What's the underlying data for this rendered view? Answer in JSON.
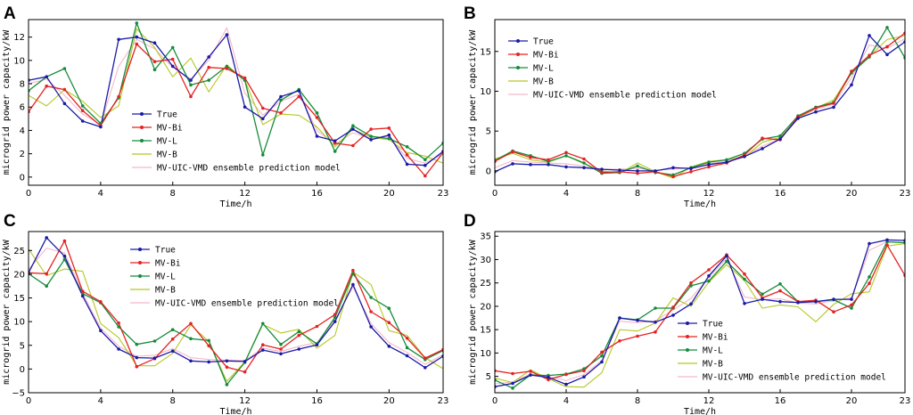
{
  "chart_data": [
    {
      "panel": "A",
      "type": "line",
      "xlabel": "Time/h",
      "ylabel": "microgrid power capacity/kW",
      "xlim": [
        0,
        23
      ],
      "ylim": [
        -0.7,
        13.5
      ],
      "xticks": [
        0,
        4,
        8,
        12,
        16,
        20,
        23
      ],
      "yticks": [
        0,
        2,
        4,
        6,
        8,
        10,
        12
      ],
      "legend_position": "lower-left",
      "x": [
        0,
        1,
        2,
        3,
        4,
        5,
        6,
        7,
        8,
        9,
        10,
        11,
        12,
        13,
        14,
        15,
        16,
        17,
        18,
        19,
        20,
        21,
        22,
        23
      ],
      "series": [
        {
          "name": "True",
          "color": "#1a1aa8",
          "marker": true,
          "values": [
            8.3,
            8.6,
            6.3,
            4.8,
            4.3,
            11.8,
            12.0,
            11.5,
            9.5,
            8.3,
            10.3,
            12.2,
            6.0,
            5.0,
            6.9,
            7.4,
            3.5,
            3.1,
            4.1,
            3.2,
            3.6,
            1.1,
            1.0,
            2.2
          ]
        },
        {
          "name": "MV-Bi",
          "color": "#e52222",
          "marker": true,
          "values": [
            5.6,
            7.8,
            7.5,
            5.7,
            4.4,
            6.9,
            11.4,
            9.9,
            10.1,
            6.9,
            9.4,
            9.3,
            8.5,
            5.9,
            5.5,
            6.9,
            5.1,
            2.9,
            2.7,
            4.1,
            4.2,
            1.9,
            0.1,
            2.1
          ]
        },
        {
          "name": "MV-L",
          "color": "#158c3a",
          "marker": true,
          "values": [
            7.4,
            8.6,
            9.3,
            6.1,
            4.6,
            6.8,
            13.2,
            9.2,
            11.1,
            7.9,
            8.3,
            9.5,
            8.3,
            1.9,
            6.6,
            7.5,
            5.5,
            2.2,
            4.4,
            3.5,
            3.3,
            2.6,
            1.5,
            2.9
          ]
        },
        {
          "name": "MV-B",
          "color": "#b5c822",
          "marker": false,
          "values": [
            7.0,
            6.1,
            7.5,
            6.5,
            5.1,
            6.1,
            12.7,
            11.1,
            8.6,
            10.2,
            7.3,
            9.6,
            8.3,
            4.5,
            5.4,
            5.3,
            4.3,
            2.6,
            4.1,
            3.4,
            3.2,
            2.1,
            1.8,
            1.2
          ]
        },
        {
          "name": "MV-UIC-VMD ensemble prediction model",
          "color": "#f4b8c8",
          "marker": false,
          "values": [
            8.0,
            8.4,
            7.0,
            5.4,
            4.5,
            9.5,
            11.8,
            11.0,
            9.4,
            8.4,
            10.0,
            12.8,
            7.2,
            5.3,
            6.5,
            7.1,
            4.0,
            2.8,
            3.8,
            3.3,
            3.5,
            1.6,
            1.2,
            2.0
          ]
        }
      ]
    },
    {
      "panel": "B",
      "type": "line",
      "xlabel": "Time/h",
      "ylabel": "microgrid power capacity/kW",
      "xlim": [
        0,
        23
      ],
      "ylim": [
        -1.8,
        19
      ],
      "xticks": [
        0,
        4,
        8,
        12,
        16,
        20,
        23
      ],
      "yticks": [
        0,
        5,
        10,
        15
      ],
      "legend_position": "upper-left",
      "x": [
        0,
        1,
        2,
        3,
        4,
        5,
        6,
        7,
        8,
        9,
        10,
        11,
        12,
        13,
        14,
        15,
        16,
        17,
        18,
        19,
        20,
        21,
        22,
        23
      ],
      "series": [
        {
          "name": "True",
          "color": "#1a1aa8",
          "marker": true,
          "values": [
            -0.1,
            0.9,
            0.8,
            0.8,
            0.5,
            0.4,
            0.2,
            0.1,
            0.0,
            0.0,
            0.4,
            0.3,
            0.8,
            1.1,
            1.8,
            2.8,
            4.0,
            6.6,
            7.4,
            8.0,
            10.8,
            17.0,
            14.6,
            16.2
          ]
        },
        {
          "name": "MV-Bi",
          "color": "#e52222",
          "marker": true,
          "values": [
            1.2,
            2.4,
            1.7,
            1.4,
            2.3,
            1.5,
            -0.2,
            -0.1,
            -0.3,
            -0.1,
            -0.7,
            -0.1,
            0.5,
            1.0,
            2.0,
            4.1,
            3.9,
            6.8,
            7.9,
            8.5,
            12.5,
            14.5,
            15.6,
            17.3
          ]
        },
        {
          "name": "MV-L",
          "color": "#158c3a",
          "marker": true,
          "values": [
            1.3,
            2.5,
            1.9,
            1.2,
            1.9,
            1.0,
            -0.3,
            -0.2,
            0.6,
            -0.2,
            -0.5,
            0.4,
            1.1,
            1.4,
            2.2,
            4.0,
            4.4,
            6.9,
            8.0,
            8.6,
            12.3,
            14.3,
            18.0,
            14.2
          ]
        },
        {
          "name": "MV-B",
          "color": "#b5c822",
          "marker": false,
          "values": [
            1.5,
            2.2,
            1.4,
            1.1,
            1.9,
            0.9,
            0.0,
            -0.3,
            1.0,
            -0.1,
            -0.9,
            0.5,
            1.2,
            1.4,
            1.7,
            3.6,
            4.2,
            6.6,
            7.9,
            8.9,
            12.4,
            14.4,
            16.5,
            17.0
          ]
        },
        {
          "name": "MV-UIC-VMD ensemble prediction model",
          "color": "#f4b8c8",
          "marker": false,
          "values": [
            0.4,
            1.3,
            1.1,
            1.0,
            0.9,
            0.6,
            0.2,
            0.2,
            0.3,
            0.1,
            0.2,
            0.4,
            0.9,
            1.3,
            1.9,
            3.1,
            4.1,
            6.7,
            7.7,
            8.4,
            11.7,
            15.8,
            15.4,
            16.6
          ]
        }
      ]
    },
    {
      "panel": "C",
      "type": "line",
      "xlabel": "Time/h",
      "ylabel": "microgrid power capacity/kW",
      "xlim": [
        0,
        23
      ],
      "ylim": [
        -5,
        29
      ],
      "xticks": [
        0,
        4,
        8,
        12,
        16,
        20,
        23
      ],
      "yticks": [
        -5,
        0,
        5,
        10,
        15,
        20,
        25
      ],
      "legend_position": "top-center",
      "x": [
        0,
        1,
        2,
        3,
        4,
        5,
        6,
        7,
        8,
        9,
        10,
        11,
        12,
        13,
        14,
        15,
        16,
        17,
        18,
        19,
        20,
        21,
        22,
        23
      ],
      "series": [
        {
          "name": "True",
          "color": "#1a1aa8",
          "marker": true,
          "values": [
            20.3,
            27.7,
            23.8,
            15.4,
            8.1,
            4.2,
            2.4,
            2.3,
            3.8,
            1.7,
            1.5,
            1.7,
            1.6,
            4.0,
            3.2,
            4.2,
            5.1,
            10.0,
            17.8,
            8.9,
            4.8,
            2.8,
            0.3,
            2.7
          ]
        },
        {
          "name": "MV-Bi",
          "color": "#e52222",
          "marker": true,
          "values": [
            20.3,
            20.1,
            27.0,
            16.4,
            14.2,
            9.7,
            0.5,
            2.2,
            6.3,
            9.6,
            4.9,
            0.4,
            -0.6,
            5.1,
            4.2,
            7.1,
            9.0,
            11.5,
            20.8,
            12.1,
            9.8,
            6.5,
            2.3,
            4.1
          ]
        },
        {
          "name": "MV-L",
          "color": "#158c3a",
          "marker": true,
          "values": [
            20.1,
            17.5,
            23.1,
            15.9,
            14.0,
            8.9,
            5.2,
            5.9,
            8.3,
            6.4,
            6.0,
            -3.3,
            1.4,
            9.6,
            5.2,
            7.9,
            5.3,
            10.9,
            20.1,
            15.1,
            12.8,
            4.5,
            2.0,
            3.9
          ]
        },
        {
          "name": "MV-B",
          "color": "#b5c822",
          "marker": false,
          "values": [
            25.3,
            19.7,
            21.1,
            20.6,
            9.6,
            6.6,
            0.7,
            0.7,
            3.3,
            9.3,
            5.8,
            -2.6,
            1.5,
            9.4,
            7.6,
            8.4,
            4.4,
            7.1,
            20.5,
            17.8,
            8.1,
            7.1,
            2.4,
            0.1
          ]
        },
        {
          "name": "MV-UIC-VMD ensemble prediction model",
          "color": "#f4b8c8",
          "marker": false,
          "values": [
            21.0,
            25.5,
            24.5,
            16.0,
            8.6,
            4.8,
            2.7,
            2.9,
            4.3,
            2.4,
            2.0,
            1.9,
            1.8,
            4.4,
            3.7,
            4.8,
            5.6,
            10.4,
            17.4,
            9.6,
            5.6,
            3.5,
            1.0,
            3.0
          ]
        }
      ]
    },
    {
      "panel": "D",
      "type": "line",
      "xlabel": "Time/h",
      "ylabel": "microgrid power capacity/kW",
      "xlim": [
        0,
        23
      ],
      "ylim": [
        1.5,
        36
      ],
      "xticks": [
        0,
        4,
        8,
        12,
        16,
        20,
        23
      ],
      "yticks": [
        5,
        10,
        15,
        20,
        25,
        30,
        35
      ],
      "legend_position": "lower-center",
      "x": [
        0,
        1,
        2,
        3,
        4,
        5,
        6,
        7,
        8,
        9,
        10,
        11,
        12,
        13,
        14,
        15,
        16,
        17,
        18,
        19,
        20,
        21,
        22,
        23
      ],
      "series": [
        {
          "name": "True",
          "color": "#1a1aa8",
          "marker": true,
          "values": [
            2.8,
            3.5,
            5.3,
            4.8,
            3.3,
            4.9,
            8.1,
            17.5,
            17.0,
            16.6,
            18.1,
            20.5,
            26.5,
            30.8,
            20.6,
            21.5,
            21.0,
            20.8,
            21.0,
            21.5,
            21.5,
            33.4,
            34.2,
            34.1
          ]
        },
        {
          "name": "MV-Bi",
          "color": "#e52222",
          "marker": true,
          "values": [
            6.2,
            5.6,
            6.1,
            4.3,
            5.4,
            6.2,
            10.2,
            12.6,
            13.6,
            14.5,
            19.8,
            25.0,
            27.8,
            31.0,
            26.9,
            21.8,
            23.3,
            21.0,
            21.3,
            18.8,
            20.3,
            24.9,
            33.1,
            26.6
          ]
        },
        {
          "name": "MV-L",
          "color": "#158c3a",
          "marker": true,
          "values": [
            4.2,
            2.5,
            5.3,
            5.2,
            5.5,
            6.6,
            9.4,
            17.5,
            17.1,
            19.6,
            19.6,
            24.4,
            25.4,
            29.6,
            25.8,
            22.6,
            24.8,
            21.0,
            21.0,
            21.4,
            19.6,
            26.3,
            33.8,
            33.6
          ]
        },
        {
          "name": "MV-B",
          "color": "#b5c822",
          "marker": false,
          "values": [
            4.6,
            3.7,
            6.4,
            4.5,
            2.8,
            2.7,
            5.8,
            15.0,
            14.7,
            16.4,
            21.8,
            20.0,
            25.2,
            28.9,
            25.5,
            19.6,
            20.3,
            19.9,
            16.7,
            20.4,
            22.7,
            23.1,
            32.9,
            33.4
          ]
        },
        {
          "name": "MV-UIC-VMD ensemble prediction model",
          "color": "#f4b8c8",
          "marker": false,
          "values": [
            3.4,
            3.8,
            5.5,
            5.0,
            4.1,
            5.4,
            8.4,
            16.8,
            16.5,
            16.9,
            19.2,
            21.7,
            26.2,
            30.2,
            22.0,
            21.4,
            21.6,
            20.7,
            20.5,
            21.2,
            21.8,
            32.0,
            33.8,
            33.6
          ]
        }
      ]
    }
  ]
}
